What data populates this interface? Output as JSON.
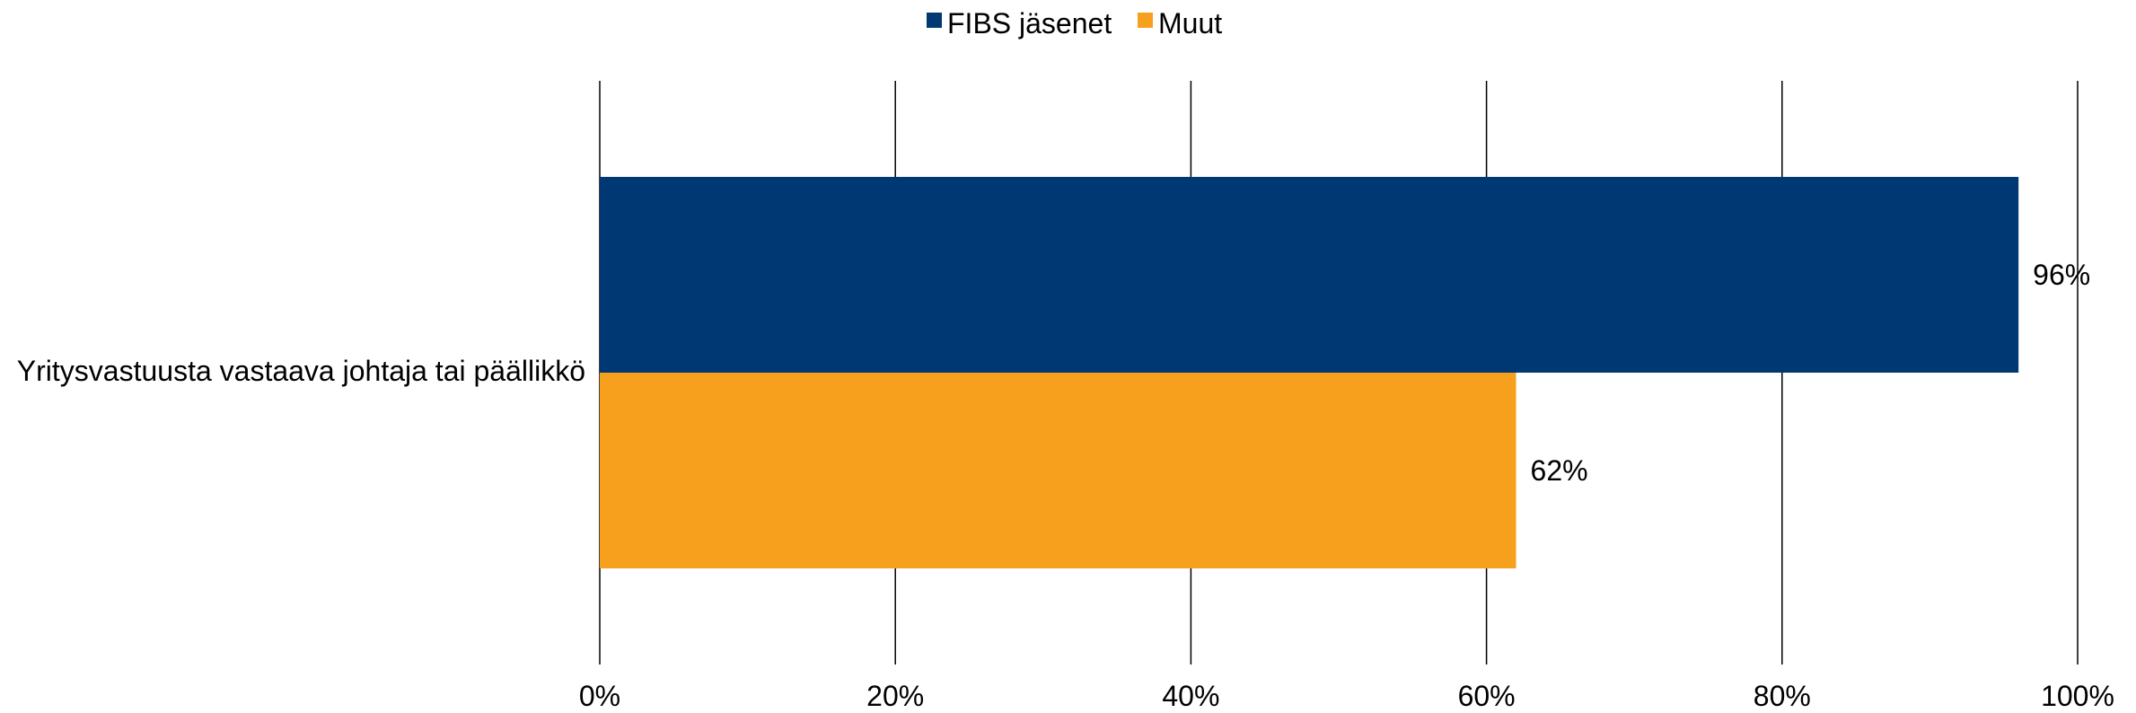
{
  "chart_data": {
    "type": "bar",
    "orientation": "horizontal",
    "categories": [
      "Yritysvastuusta vastaava johtaja tai päällikkö"
    ],
    "series": [
      {
        "name": "FIBS jäsenet",
        "values": [
          96
        ],
        "color": "#003873"
      },
      {
        "name": "Muut",
        "values": [
          62
        ],
        "color": "#F7A01E"
      }
    ],
    "data_labels": [
      [
        "96%"
      ],
      [
        "62%"
      ]
    ],
    "xlim": [
      0,
      100
    ],
    "x_ticks": [
      0,
      20,
      40,
      60,
      80,
      100
    ],
    "x_tick_labels": [
      "0%",
      "20%",
      "40%",
      "60%",
      "80%",
      "100%"
    ],
    "grid": "vertical",
    "legend": "top-center",
    "gridline_color": "#000000"
  }
}
